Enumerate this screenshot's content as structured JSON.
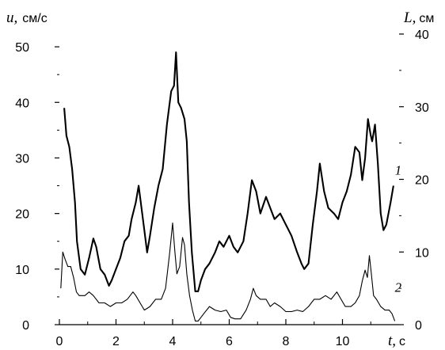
{
  "chart_data": {
    "type": "line",
    "x_axis": {
      "var": "t,",
      "unit": "с",
      "range": [
        0,
        12
      ],
      "ticks": [
        0,
        2,
        4,
        6,
        8,
        10
      ]
    },
    "y_left": {
      "var": "u,",
      "unit": "см/с",
      "range": [
        0,
        55
      ],
      "ticks": [
        0,
        10,
        20,
        30,
        40,
        50
      ]
    },
    "y_right": {
      "var": "L,",
      "unit": "см",
      "range": [
        0,
        40
      ],
      "ticks": [
        0,
        10,
        20,
        30,
        40
      ]
    },
    "grid": false,
    "series": [
      {
        "name": "1",
        "axis": "left",
        "color": "#000000",
        "points": [
          [
            0.17,
            39
          ],
          [
            0.25,
            34
          ],
          [
            0.35,
            32
          ],
          [
            0.45,
            28
          ],
          [
            0.55,
            22
          ],
          [
            0.62,
            15
          ],
          [
            0.75,
            10
          ],
          [
            0.9,
            9
          ],
          [
            1.05,
            12
          ],
          [
            1.2,
            15.5
          ],
          [
            1.3,
            14
          ],
          [
            1.45,
            10
          ],
          [
            1.6,
            9
          ],
          [
            1.75,
            7
          ],
          [
            1.85,
            8
          ],
          [
            2.0,
            10
          ],
          [
            2.15,
            12
          ],
          [
            2.3,
            15
          ],
          [
            2.45,
            16
          ],
          [
            2.55,
            19
          ],
          [
            2.7,
            22
          ],
          [
            2.8,
            25
          ],
          [
            2.9,
            21
          ],
          [
            3.0,
            17
          ],
          [
            3.1,
            13
          ],
          [
            3.2,
            16
          ],
          [
            3.35,
            21
          ],
          [
            3.5,
            25
          ],
          [
            3.65,
            28
          ],
          [
            3.8,
            36
          ],
          [
            3.95,
            42
          ],
          [
            4.05,
            43
          ],
          [
            4.12,
            49
          ],
          [
            4.2,
            40
          ],
          [
            4.3,
            39
          ],
          [
            4.42,
            37
          ],
          [
            4.5,
            33
          ],
          [
            4.58,
            22
          ],
          [
            4.68,
            13
          ],
          [
            4.8,
            6
          ],
          [
            4.9,
            6
          ],
          [
            5.0,
            8
          ],
          [
            5.15,
            10
          ],
          [
            5.3,
            11
          ],
          [
            5.5,
            13
          ],
          [
            5.65,
            15
          ],
          [
            5.8,
            14
          ],
          [
            6.0,
            16
          ],
          [
            6.15,
            14
          ],
          [
            6.3,
            13
          ],
          [
            6.5,
            15
          ],
          [
            6.65,
            20
          ],
          [
            6.8,
            26
          ],
          [
            6.95,
            24
          ],
          [
            7.1,
            20
          ],
          [
            7.3,
            23
          ],
          [
            7.45,
            21
          ],
          [
            7.6,
            19
          ],
          [
            7.8,
            20
          ],
          [
            8.0,
            18
          ],
          [
            8.2,
            16
          ],
          [
            8.4,
            13
          ],
          [
            8.55,
            11
          ],
          [
            8.65,
            10
          ],
          [
            8.8,
            11
          ],
          [
            8.95,
            18
          ],
          [
            9.1,
            24
          ],
          [
            9.2,
            29
          ],
          [
            9.35,
            24
          ],
          [
            9.5,
            21
          ],
          [
            9.7,
            20
          ],
          [
            9.85,
            19
          ],
          [
            10.0,
            22
          ],
          [
            10.15,
            24
          ],
          [
            10.3,
            27
          ],
          [
            10.45,
            32
          ],
          [
            10.6,
            31
          ],
          [
            10.7,
            26
          ],
          [
            10.8,
            30
          ],
          [
            10.9,
            37
          ],
          [
            11.0,
            34
          ],
          [
            11.05,
            33
          ],
          [
            11.15,
            36
          ],
          [
            11.25,
            29
          ],
          [
            11.35,
            20
          ],
          [
            11.45,
            17
          ],
          [
            11.55,
            18
          ],
          [
            11.7,
            22
          ],
          [
            11.8,
            25
          ]
        ]
      },
      {
        "name": "2",
        "axis": "right",
        "color": "#000000",
        "points": [
          [
            0.05,
            5
          ],
          [
            0.12,
            10
          ],
          [
            0.2,
            9
          ],
          [
            0.3,
            8
          ],
          [
            0.4,
            8
          ],
          [
            0.5,
            6.5
          ],
          [
            0.6,
            4.5
          ],
          [
            0.7,
            4
          ],
          [
            0.9,
            4
          ],
          [
            1.05,
            4.5
          ],
          [
            1.2,
            4
          ],
          [
            1.4,
            3
          ],
          [
            1.6,
            3
          ],
          [
            1.8,
            2.5
          ],
          [
            2.0,
            3
          ],
          [
            2.2,
            3
          ],
          [
            2.4,
            3.5
          ],
          [
            2.6,
            4.5
          ],
          [
            2.7,
            4
          ],
          [
            2.85,
            3
          ],
          [
            3.0,
            2
          ],
          [
            3.2,
            2.5
          ],
          [
            3.4,
            3.5
          ],
          [
            3.6,
            3.5
          ],
          [
            3.75,
            5
          ],
          [
            3.9,
            10
          ],
          [
            4.0,
            14
          ],
          [
            4.08,
            10
          ],
          [
            4.15,
            7
          ],
          [
            4.25,
            8
          ],
          [
            4.35,
            12
          ],
          [
            4.42,
            11
          ],
          [
            4.5,
            7
          ],
          [
            4.6,
            4
          ],
          [
            4.7,
            2
          ],
          [
            4.8,
            0.5
          ],
          [
            4.9,
            0.5
          ],
          [
            5.0,
            1
          ],
          [
            5.1,
            1.5
          ],
          [
            5.3,
            2.5
          ],
          [
            5.5,
            2
          ],
          [
            5.7,
            1.8
          ],
          [
            5.9,
            2
          ],
          [
            6.05,
            1
          ],
          [
            6.2,
            0.8
          ],
          [
            6.4,
            0.8
          ],
          [
            6.6,
            2
          ],
          [
            6.75,
            3.5
          ],
          [
            6.85,
            5
          ],
          [
            6.95,
            4
          ],
          [
            7.1,
            3.5
          ],
          [
            7.3,
            3.5
          ],
          [
            7.45,
            2.5
          ],
          [
            7.6,
            3
          ],
          [
            7.8,
            2.5
          ],
          [
            8.0,
            1.8
          ],
          [
            8.2,
            1.8
          ],
          [
            8.4,
            2
          ],
          [
            8.6,
            1.8
          ],
          [
            8.8,
            2.5
          ],
          [
            9.0,
            3.5
          ],
          [
            9.2,
            3.5
          ],
          [
            9.4,
            4
          ],
          [
            9.6,
            3.5
          ],
          [
            9.8,
            4.5
          ],
          [
            9.95,
            3.5
          ],
          [
            10.1,
            2.5
          ],
          [
            10.3,
            2.5
          ],
          [
            10.45,
            3
          ],
          [
            10.6,
            4
          ],
          [
            10.7,
            6
          ],
          [
            10.8,
            7.5
          ],
          [
            10.88,
            6.5
          ],
          [
            10.95,
            9.5
          ],
          [
            11.02,
            7
          ],
          [
            11.1,
            4
          ],
          [
            11.2,
            3.5
          ],
          [
            11.35,
            2.5
          ],
          [
            11.5,
            2
          ],
          [
            11.65,
            2
          ],
          [
            11.75,
            1.5
          ],
          [
            11.85,
            0.5
          ]
        ]
      }
    ],
    "labels": [
      {
        "text": "1",
        "x": 11.85,
        "y": 27,
        "axis": "left"
      },
      {
        "text": "2",
        "x": 11.85,
        "y": 4.5,
        "axis": "right"
      }
    ]
  }
}
